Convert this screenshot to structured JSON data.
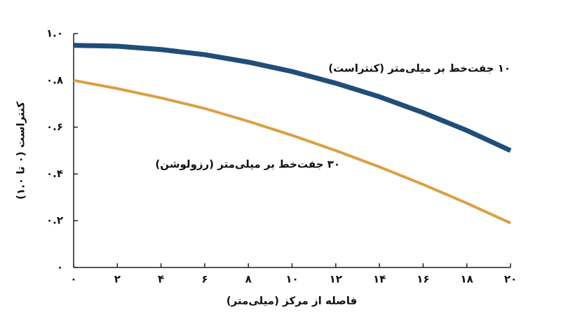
{
  "chart_data": {
    "type": "line",
    "x_label": "فاصله از مرکز (میلی‌متر)",
    "y_label": "کنتراست (۰ تا ۱.۰)",
    "x": [
      0,
      2,
      4,
      6,
      8,
      10,
      12,
      14,
      16,
      18,
      20
    ],
    "series": [
      {
        "name": "۱۰ جفت‌خط بر میلی‌متر (کنتراست)",
        "color": "#1f4e79",
        "values": [
          0.95,
          0.946,
          0.932,
          0.91,
          0.878,
          0.838,
          0.788,
          0.73,
          0.662,
          0.586,
          0.5
        ]
      },
      {
        "name": "۳۰ جفت‌خط بر میلی‌متر (رزولوشن)",
        "color": "#d9a043",
        "values": [
          0.8,
          0.765,
          0.725,
          0.68,
          0.625,
          0.565,
          0.5,
          0.43,
          0.355,
          0.275,
          0.19
        ]
      }
    ],
    "xlim": [
      0,
      20
    ],
    "ylim": [
      0,
      1
    ],
    "xticks": [
      {
        "value": 0,
        "label": "۰"
      },
      {
        "value": 2,
        "label": "۲"
      },
      {
        "value": 4,
        "label": "۴"
      },
      {
        "value": 6,
        "label": "۶"
      },
      {
        "value": 8,
        "label": "۸"
      },
      {
        "value": 10,
        "label": "۱۰"
      },
      {
        "value": 12,
        "label": "۱۲"
      },
      {
        "value": 14,
        "label": "۱۴"
      },
      {
        "value": 16,
        "label": "۱۶"
      },
      {
        "value": 18,
        "label": "۱۸"
      },
      {
        "value": 20,
        "label": "۲۰"
      }
    ],
    "yticks": [
      {
        "value": 0,
        "label": "۰"
      },
      {
        "value": 0.2,
        "label": "۰.۲"
      },
      {
        "value": 0.4,
        "label": "۰.۴"
      },
      {
        "value": 0.6,
        "label": "۰.۶"
      },
      {
        "value": 0.8,
        "label": "۰.۸"
      },
      {
        "value": 1,
        "label": "۱.۰"
      }
    ]
  }
}
